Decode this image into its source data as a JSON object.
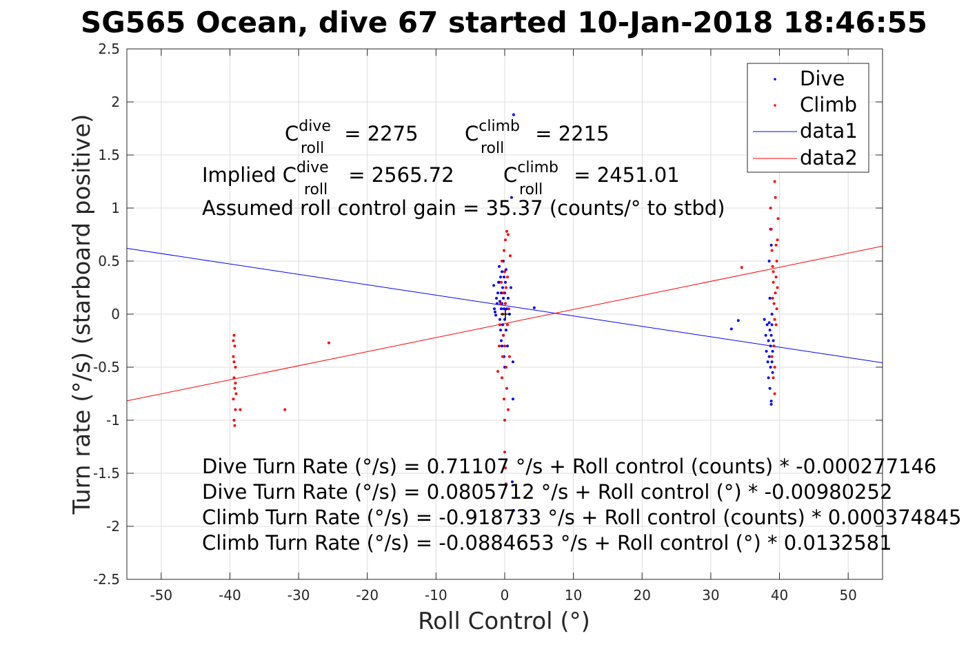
{
  "chart_data": {
    "type": "scatter",
    "title": "SG565 Ocean, dive 67 started 10-Jan-2018 18:46:55",
    "xlabel": "Roll Control (°)",
    "ylabel": "Turn rate (°/s) (starboard positive)",
    "xlim": [
      -55,
      55
    ],
    "ylim": [
      -2.5,
      2.5
    ],
    "xticks": [
      -50,
      -40,
      -30,
      -20,
      -10,
      0,
      10,
      20,
      30,
      40,
      50
    ],
    "yticks": [
      -2.5,
      -2,
      -1.5,
      -1,
      -0.5,
      0,
      0.5,
      1,
      1.5,
      2,
      2.5
    ],
    "xtick_labels": [
      "-50",
      "-40",
      "-30",
      "-20",
      "-10",
      "0",
      "10",
      "20",
      "30",
      "40",
      "50"
    ],
    "ytick_labels": [
      "-2.5",
      "-2",
      "-1.5",
      "-1",
      "-0.5",
      "0",
      "0.5",
      "1",
      "1.5",
      "2",
      "2.5"
    ],
    "grid": true,
    "legend_position": "top-right",
    "series": [
      {
        "name": "Dive",
        "kind": "points",
        "color": "#0000ff",
        "points": [
          [
            -1.6,
            0.27
          ],
          [
            -1.5,
            0.05
          ],
          [
            -1.4,
            0.02
          ],
          [
            -1.3,
            -0.01
          ],
          [
            -1.2,
            0.15
          ],
          [
            -1.1,
            0.1
          ],
          [
            -1.0,
            0.2
          ],
          [
            -0.9,
            0.3
          ],
          [
            -0.8,
            0.45
          ],
          [
            -0.8,
            0.3
          ],
          [
            -0.7,
            0.12
          ],
          [
            -0.7,
            -0.05
          ],
          [
            -0.6,
            0.35
          ],
          [
            -0.6,
            -0.15
          ],
          [
            -0.5,
            0.2
          ],
          [
            -0.5,
            0.05
          ],
          [
            -0.5,
            -0.25
          ],
          [
            -0.4,
            0.4
          ],
          [
            -0.4,
            0.1
          ],
          [
            -0.4,
            -0.3
          ],
          [
            -0.3,
            0.25
          ],
          [
            -0.3,
            0.0
          ],
          [
            -0.3,
            -0.1
          ],
          [
            -0.2,
            0.5
          ],
          [
            -0.2,
            0.15
          ],
          [
            -0.2,
            -0.2
          ],
          [
            -0.1,
            0.35
          ],
          [
            -0.1,
            0.05
          ],
          [
            -0.1,
            -0.4
          ],
          [
            0.0,
            0.2
          ],
          [
            0.0,
            -0.05
          ],
          [
            0.0,
            -0.5
          ],
          [
            0.1,
            0.3
          ],
          [
            0.1,
            0.1
          ],
          [
            0.2,
            -0.15
          ],
          [
            0.2,
            0.42
          ],
          [
            0.3,
            0.05
          ],
          [
            0.4,
            -0.3
          ],
          [
            0.5,
            0.15
          ],
          [
            0.7,
            0.0
          ],
          [
            0.9,
            0.25
          ],
          [
            1.0,
            1.1
          ],
          [
            1.2,
            -0.45
          ],
          [
            1.2,
            -0.8
          ],
          [
            1.3,
            1.88
          ],
          [
            1.3,
            -1.85
          ],
          [
            1.1,
            -1.58
          ],
          [
            4.3,
            0.06
          ],
          [
            33.0,
            -0.14
          ],
          [
            34.0,
            -0.06
          ],
          [
            37.8,
            -0.05
          ],
          [
            38.0,
            -0.2
          ],
          [
            38.1,
            -0.35
          ],
          [
            38.2,
            -0.1
          ],
          [
            38.3,
            -0.45
          ],
          [
            38.4,
            -0.25
          ],
          [
            38.4,
            -0.6
          ],
          [
            38.5,
            -0.08
          ],
          [
            38.5,
            -0.4
          ],
          [
            38.6,
            -0.15
          ],
          [
            38.6,
            -0.7
          ],
          [
            38.7,
            -0.3
          ],
          [
            38.7,
            -0.5
          ],
          [
            38.8,
            -0.2
          ],
          [
            38.8,
            -0.82
          ],
          [
            38.9,
            -0.1
          ],
          [
            38.9,
            -0.45
          ],
          [
            39.0,
            -0.35
          ],
          [
            39.0,
            -0.55
          ],
          [
            39.1,
            -0.25
          ],
          [
            38.9,
            0.0
          ],
          [
            38.8,
            0.65
          ],
          [
            38.7,
            0.8
          ],
          [
            38.6,
            0.15
          ],
          [
            38.5,
            0.5
          ],
          [
            38.8,
            -0.85
          ]
        ]
      },
      {
        "name": "Climb",
        "kind": "points",
        "color": "#ff0000",
        "points": [
          [
            -39.4,
            -0.2
          ],
          [
            -39.3,
            -0.3
          ],
          [
            -39.5,
            -0.4
          ],
          [
            -39.2,
            -0.5
          ],
          [
            -39.4,
            -0.6
          ],
          [
            -39.3,
            -0.7
          ],
          [
            -39.5,
            -0.8
          ],
          [
            -39.2,
            -0.9
          ],
          [
            -39.4,
            -1.0
          ],
          [
            -39.3,
            -1.05
          ],
          [
            -39.5,
            -0.25
          ],
          [
            -39.4,
            -0.45
          ],
          [
            -39.2,
            -0.65
          ],
          [
            -39.1,
            -0.75
          ],
          [
            -38.5,
            -0.9
          ],
          [
            -32.0,
            -0.9
          ],
          [
            -25.6,
            -0.27
          ],
          [
            -1.0,
            -0.54
          ],
          [
            -0.8,
            -0.3
          ],
          [
            -0.7,
            -0.1
          ],
          [
            -0.6,
            0.1
          ],
          [
            -0.5,
            0.3
          ],
          [
            -0.4,
            -0.6
          ],
          [
            -0.4,
            0.5
          ],
          [
            -0.3,
            -0.4
          ],
          [
            -0.3,
            0.0
          ],
          [
            -0.2,
            0.2
          ],
          [
            -0.2,
            -0.2
          ],
          [
            -0.1,
            0.6
          ],
          [
            -0.1,
            -0.8
          ],
          [
            0.0,
            0.4
          ],
          [
            0.0,
            -0.3
          ],
          [
            0.0,
            -1.0
          ],
          [
            0.1,
            0.7
          ],
          [
            0.1,
            0.1
          ],
          [
            0.2,
            -0.5
          ],
          [
            0.2,
            0.25
          ],
          [
            0.3,
            -0.7
          ],
          [
            0.3,
            0.78
          ],
          [
            0.4,
            -0.1
          ],
          [
            0.4,
            0.35
          ],
          [
            0.5,
            -0.9
          ],
          [
            0.6,
            0.05
          ],
          [
            0.7,
            -0.4
          ],
          [
            0.8,
            0.55
          ],
          [
            0.0,
            -1.3
          ],
          [
            0.1,
            -1.45
          ],
          [
            0.2,
            -1.6
          ],
          [
            0.5,
            0.75
          ],
          [
            34.5,
            0.44
          ],
          [
            38.7,
            1.0
          ],
          [
            38.8,
            0.8
          ],
          [
            38.9,
            0.6
          ],
          [
            39.0,
            0.45
          ],
          [
            39.1,
            0.3
          ],
          [
            39.2,
            0.1
          ],
          [
            39.3,
            -0.05
          ],
          [
            39.4,
            0.2
          ],
          [
            39.5,
            0.35
          ],
          [
            39.6,
            0.5
          ],
          [
            39.7,
            0.7
          ],
          [
            39.8,
            0.9
          ],
          [
            39.3,
            1.25
          ],
          [
            39.4,
            1.1
          ],
          [
            39.5,
            -0.1
          ],
          [
            39.2,
            -0.3
          ],
          [
            39.3,
            -0.5
          ],
          [
            39.1,
            -0.6
          ],
          [
            39.3,
            -0.75
          ],
          [
            39.6,
            0.05
          ],
          [
            39.7,
            0.25
          ],
          [
            39.5,
            0.65
          ],
          [
            39.1,
            0.4
          ],
          [
            39.0,
            0.15
          ],
          [
            38.9,
            -0.4
          ]
        ]
      },
      {
        "name": "data1",
        "kind": "line",
        "color": "#0000ff",
        "points": [
          [
            -55,
            0.6198
          ],
          [
            55,
            -0.4584
          ]
        ]
      },
      {
        "name": "data2",
        "kind": "line",
        "color": "#ff0000",
        "points": [
          [
            -55,
            -0.8177
          ],
          [
            55,
            0.6407
          ]
        ]
      }
    ]
  },
  "annotations": {
    "c_roll_dive_prefix": "C",
    "c_roll_dive_sup": "dive",
    "c_roll_dive_sub": "roll",
    "c_roll_dive_value": " = 2275",
    "c_roll_climb_prefix": "C",
    "c_roll_climb_sup": "climb",
    "c_roll_climb_sub": "roll",
    "c_roll_climb_value": " = 2215",
    "implied_prefix": "Implied C",
    "implied_dive_sup": "dive",
    "implied_dive_sub": "roll",
    "implied_dive_value": " = 2565.72",
    "implied_climb_prefix": "C",
    "implied_climb_sup": "climb",
    "implied_climb_sub": "roll",
    "implied_climb_value": " = 2451.01",
    "gain": "Assumed roll control gain = 35.37 (counts/° to stbd)",
    "eq1": "Dive Turn Rate (°/s) = 0.71107 °/s + Roll control (counts) * -0.000277146",
    "eq2": "Dive Turn Rate (°/s) = 0.0805712 °/s + Roll control (°) * -0.00980252",
    "eq3": "Climb Turn Rate (°/s) = -0.918733 °/s + Roll control (counts) * 0.000374845",
    "eq4": "Climb Turn Rate (°/s) = -0.0884653 °/s + Roll control (°) * 0.0132581"
  }
}
